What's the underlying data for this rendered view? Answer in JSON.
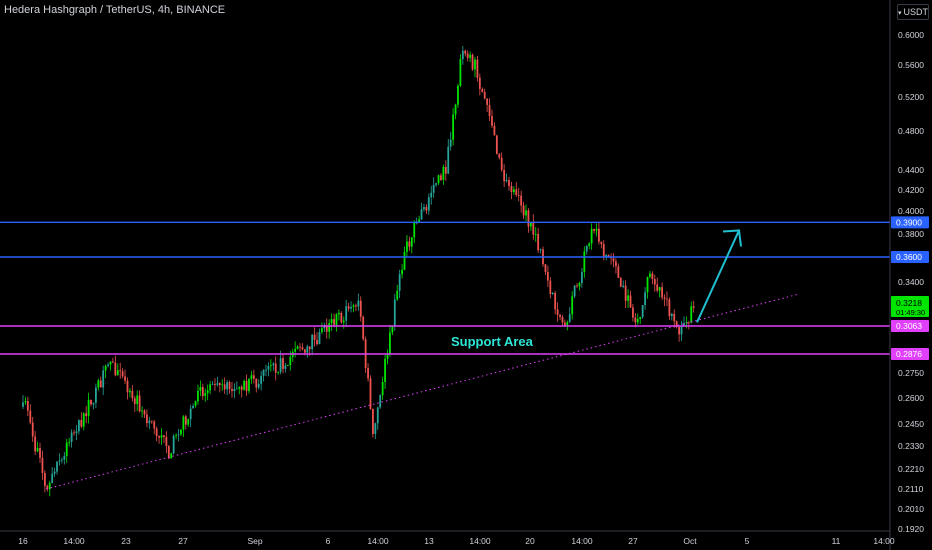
{
  "header": {
    "title": "Hedera Hashgraph / TetherUS, 4h, BINANCE",
    "currency": "USDT"
  },
  "colors": {
    "background": "#000000",
    "up": "#26a69a",
    "up_bright": "#00e600",
    "down": "#ef5350",
    "resistance": "#2962ff",
    "support": "#e040fb",
    "trendline": "#e040fb",
    "arrow": "#1fbfd0",
    "annotation_text": "#2ee6d6",
    "axis_text": "#d1d4dc"
  },
  "chart_data": {
    "type": "candlestick",
    "symbol": "HBARUSDT",
    "timeframe": "4h",
    "exchange": "BINANCE",
    "y_axis": {
      "scale": "log",
      "ticks": [
        "0.6000",
        "0.5600",
        "0.5200",
        "0.4800",
        "0.4400",
        "0.4200",
        "0.4000",
        "0.3800",
        "0.3400",
        "0.2750",
        "0.2600",
        "0.2450",
        "0.2330",
        "0.2210",
        "0.2110",
        "0.2010",
        "0.1920"
      ],
      "ylim": [
        0.188,
        0.66
      ]
    },
    "x_axis": {
      "ticks": [
        "16",
        "14:00",
        "23",
        "27",
        "Sep",
        "6",
        "14:00",
        "13",
        "14:00",
        "20",
        "14:00",
        "27",
        "Oct",
        "5",
        "11",
        "14:00"
      ]
    },
    "price_labels": [
      {
        "value": "0.3900",
        "role": "resistance"
      },
      {
        "value": "0.3600",
        "role": "resistance"
      },
      {
        "value": "0.3218",
        "role": "last_price"
      },
      {
        "value": "01:49:30",
        "role": "countdown"
      },
      {
        "value": "0.3063",
        "role": "support"
      },
      {
        "value": "0.2876",
        "role": "support"
      }
    ],
    "horizontal_lines": [
      {
        "price": 0.39,
        "style": "solid",
        "color": "#2962ff"
      },
      {
        "price": 0.36,
        "style": "solid",
        "color": "#2962ff"
      },
      {
        "price": 0.3063,
        "style": "solid",
        "color": "#e040fb"
      },
      {
        "price": 0.2876,
        "style": "solid",
        "color": "#e040fb"
      }
    ],
    "trendline": {
      "from": {
        "x": "Aug 17 14:00",
        "price": 0.211
      },
      "to": {
        "x": "Oct 8",
        "price": 0.33
      },
      "style": "dotted"
    },
    "annotations": [
      {
        "text": "Support Area",
        "kind": "label"
      },
      {
        "kind": "arrow",
        "direction": "up-right",
        "from_price": 0.309,
        "to_price": 0.383
      }
    ],
    "key_points": [
      {
        "date": "Aug 16",
        "price": 0.262
      },
      {
        "date": "Aug 17 14:00",
        "price": 0.211
      },
      {
        "date": "Aug 22",
        "price": 0.282
      },
      {
        "date": "Aug 26",
        "price": 0.23
      },
      {
        "date": "Aug 28",
        "price": 0.262
      },
      {
        "date": "Sep 1",
        "price": 0.27
      },
      {
        "date": "Sep 5",
        "price": 0.298
      },
      {
        "date": "Sep 8",
        "price": 0.325
      },
      {
        "date": "Sep 9",
        "price": 0.24
      },
      {
        "date": "Sep 11",
        "price": 0.358
      },
      {
        "date": "Sep 12",
        "price": 0.39
      },
      {
        "date": "Sep 14",
        "price": 0.445
      },
      {
        "date": "Sep 15",
        "price": 0.57
      },
      {
        "date": "Sep 16",
        "price": 0.56
      },
      {
        "date": "Sep 18",
        "price": 0.43
      },
      {
        "date": "Sep 20",
        "price": 0.385
      },
      {
        "date": "Sep 21",
        "price": 0.34
      },
      {
        "date": "Sep 22",
        "price": 0.305
      },
      {
        "date": "Sep 23",
        "price": 0.34
      },
      {
        "date": "Sep 24",
        "price": 0.385
      },
      {
        "date": "Sep 26",
        "price": 0.34
      },
      {
        "date": "Sep 27",
        "price": 0.307
      },
      {
        "date": "Sep 28",
        "price": 0.35
      },
      {
        "date": "Sep 30",
        "price": 0.302
      },
      {
        "date": "Oct 1",
        "price": 0.3218
      }
    ]
  }
}
